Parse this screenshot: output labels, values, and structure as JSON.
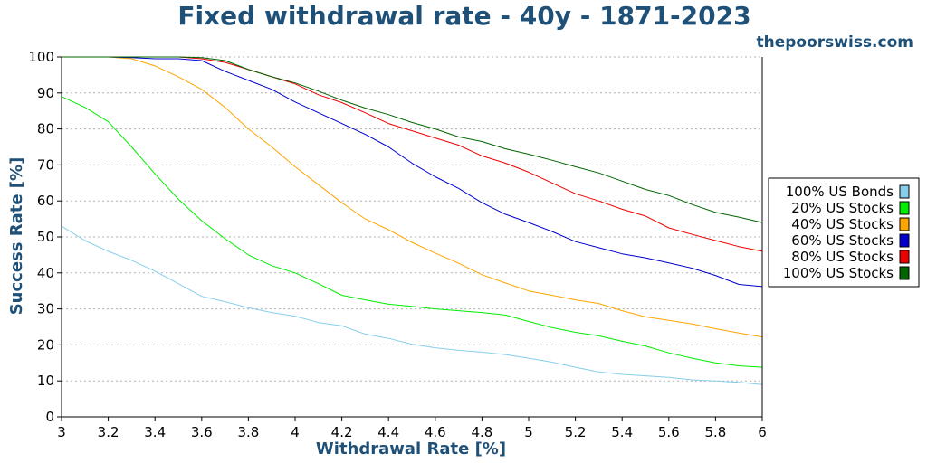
{
  "chart_data": {
    "type": "line",
    "title": "Fixed withdrawal rate - 40y - 1871-2023",
    "watermark": "thepoorswiss.com",
    "xlabel": "Withdrawal Rate [%]",
    "ylabel": "Success Rate [%]",
    "xlim": [
      3,
      6
    ],
    "ylim": [
      0,
      100
    ],
    "xticks": [
      "3",
      "3.2",
      "3.4",
      "3.6",
      "3.8",
      "4",
      "4.2",
      "4.4",
      "4.6",
      "4.8",
      "5",
      "5.2",
      "5.4",
      "5.6",
      "5.8",
      "6"
    ],
    "yticks": [
      "0",
      "10",
      "20",
      "30",
      "40",
      "50",
      "60",
      "70",
      "80",
      "90",
      "100"
    ],
    "grid": "horizontal dotted",
    "legend_position": "right",
    "x": [
      3.0,
      3.1,
      3.2,
      3.3,
      3.4,
      3.5,
      3.6,
      3.7,
      3.8,
      3.9,
      4.0,
      4.1,
      4.2,
      4.3,
      4.4,
      4.5,
      4.6,
      4.7,
      4.8,
      4.9,
      5.0,
      5.1,
      5.2,
      5.3,
      5.4,
      5.5,
      5.6,
      5.7,
      5.8,
      5.9,
      6.0
    ],
    "series": [
      {
        "name": "100% US Bonds",
        "color": "#87ceeb",
        "values": [
          53,
          49,
          46,
          43.5,
          40.5,
          37,
          33.5,
          32,
          30.3,
          29,
          28,
          26.2,
          25.3,
          23,
          21.8,
          20.2,
          19.2,
          18.5,
          18,
          17.3,
          16.3,
          15.2,
          13.8,
          12.5,
          11.8,
          11.4,
          11,
          10.3,
          10,
          9.6,
          9
        ]
      },
      {
        "name": "20% US Stocks",
        "color": "#00ee00",
        "values": [
          89,
          86,
          82,
          75,
          67.5,
          60.5,
          54.5,
          49.5,
          45,
          42,
          40,
          37,
          33.8,
          32.5,
          31.3,
          30.7,
          30,
          29.5,
          29,
          28.3,
          26.5,
          24.8,
          23.5,
          22.5,
          21,
          19.7,
          17.8,
          16.3,
          15,
          14.2,
          13.8
        ]
      },
      {
        "name": "40% US Stocks",
        "color": "#ffa500",
        "values": [
          100,
          100,
          100,
          99.5,
          97.5,
          94.5,
          91,
          86,
          80,
          75,
          69.5,
          64.5,
          59.5,
          55,
          52,
          48.5,
          45.5,
          42.7,
          39.5,
          37.2,
          35,
          33.8,
          32.5,
          31.5,
          29.5,
          27.8,
          26.8,
          25.8,
          24.5,
          23.3,
          22.2
        ]
      },
      {
        "name": "60% US Stocks",
        "color": "#0000cd",
        "values": [
          100,
          100,
          100,
          99.8,
          99.5,
          99.5,
          99,
          96,
          93.5,
          91,
          87.5,
          84.5,
          81.5,
          78.5,
          75,
          70.5,
          66.7,
          63.5,
          59.5,
          56.3,
          54,
          51.5,
          48.7,
          47,
          45.3,
          44.2,
          42.8,
          41.3,
          39.3,
          36.8,
          36.2
        ]
      },
      {
        "name": "80% US Stocks",
        "color": "#ee0000",
        "values": [
          100,
          100,
          100,
          100,
          100,
          100,
          99.5,
          98.5,
          96.5,
          94.5,
          92.5,
          89.5,
          87.3,
          84.5,
          81.5,
          79.5,
          77.5,
          75.5,
          72.5,
          70.5,
          68,
          65,
          62,
          60,
          57.7,
          55.8,
          52.5,
          50.7,
          49,
          47.3,
          46
        ]
      },
      {
        "name": "100% US Stocks",
        "color": "#006400",
        "values": [
          100,
          100,
          100,
          100,
          100,
          100,
          99.8,
          99,
          96.5,
          94.5,
          92.8,
          90.5,
          88,
          85.8,
          84,
          81.8,
          80,
          77.8,
          76.5,
          74.5,
          73,
          71.3,
          69.5,
          67.8,
          65.5,
          63.2,
          61.5,
          59,
          56.8,
          55.5,
          54
        ]
      }
    ]
  }
}
